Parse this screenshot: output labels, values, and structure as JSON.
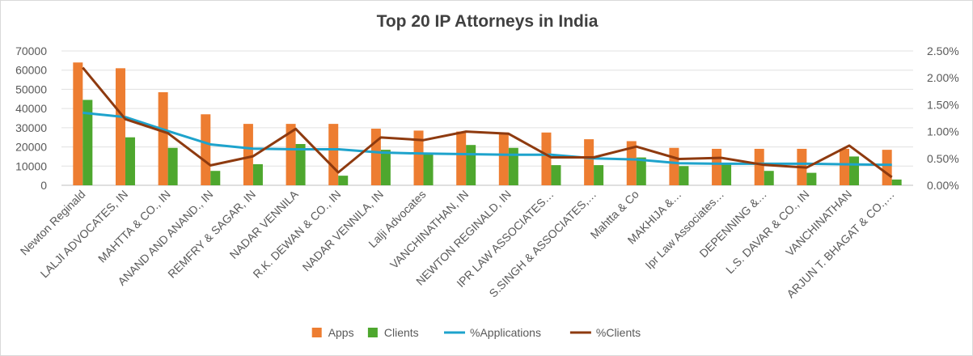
{
  "chart_data": {
    "type": "bar",
    "title": "Top 20 IP Attorneys in India",
    "categories": [
      "Newton Reginald",
      "LALJI ADVOCATES, IN",
      "MAHTTA & CO., IN",
      "ANAND AND ANAND., IN",
      "REMFRY & SAGAR, IN",
      "NADAR VENNILA",
      "R.K. DEWAN & CO., IN",
      "NADAR VENNILA, IN",
      "Lalji Advocates",
      "VANCHINATHAN, IN",
      "NEWTON REGINALD, IN",
      "IPR LAW ASSOCIATES…",
      "S.SINGH & ASSOCIATES,…",
      "Mahtta & Co",
      "MAKHIJA &…",
      "Ipr Law Associates…",
      "DEPENNING &…",
      "L.S. DAVAR & CO., IN",
      "VANCHINATHAN",
      "ARJUN T. BHAGAT & CO.,…"
    ],
    "series": [
      {
        "name": "Apps",
        "type": "bar",
        "axis": "left",
        "color": "#ED7D31",
        "values": [
          64000,
          61000,
          48500,
          37000,
          32000,
          32000,
          32000,
          29500,
          28500,
          28000,
          27500,
          27500,
          24000,
          23000,
          19500,
          19000,
          19000,
          19000,
          19000,
          18500
        ]
      },
      {
        "name": "Clients",
        "type": "bar",
        "axis": "left",
        "color": "#4EA72E",
        "values": [
          44500,
          25000,
          19500,
          7500,
          11000,
          21500,
          5000,
          18500,
          17000,
          21000,
          19500,
          10500,
          10500,
          14500,
          10000,
          11500,
          7500,
          6500,
          15000,
          3000
        ]
      },
      {
        "name": "%Applications",
        "type": "line",
        "axis": "right",
        "color": "#1EA3CC",
        "values": [
          1.35,
          1.27,
          1.01,
          0.76,
          0.68,
          0.67,
          0.67,
          0.61,
          0.59,
          0.58,
          0.57,
          0.57,
          0.5,
          0.48,
          0.41,
          0.4,
          0.4,
          0.4,
          0.39,
          0.38
        ]
      },
      {
        "name": "%Clients",
        "type": "line",
        "axis": "right",
        "color": "#8E3A0F",
        "values": [
          2.19,
          1.23,
          0.97,
          0.37,
          0.54,
          1.05,
          0.24,
          0.89,
          0.84,
          1.0,
          0.96,
          0.52,
          0.52,
          0.72,
          0.49,
          0.51,
          0.38,
          0.33,
          0.74,
          0.15
        ]
      }
    ],
    "y_left": {
      "min": 0,
      "max": 70000,
      "ticks": [
        "0",
        "10000",
        "20000",
        "30000",
        "40000",
        "50000",
        "60000",
        "70000"
      ]
    },
    "y_right": {
      "min": 0,
      "max": 2.5,
      "ticks": [
        "0.00%",
        "0.50%",
        "1.00%",
        "1.50%",
        "2.00%",
        "2.50%"
      ]
    },
    "grid": true,
    "legend_position": "bottom"
  }
}
